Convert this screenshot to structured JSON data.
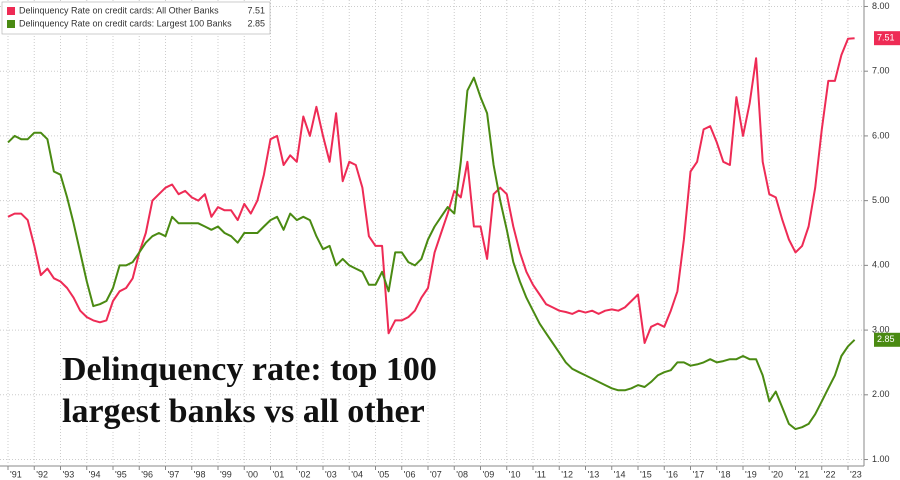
{
  "chart_data": {
    "type": "line",
    "annotation": [
      "Delinquency rate: top 100",
      "largest banks vs all other"
    ],
    "categories": [
      "'91",
      null,
      null,
      null,
      "'92",
      null,
      null,
      null,
      "'93",
      null,
      null,
      null,
      "'94",
      null,
      null,
      null,
      "'95",
      null,
      null,
      null,
      "'96",
      null,
      null,
      null,
      "'97",
      null,
      null,
      null,
      "'98",
      null,
      null,
      null,
      "'99",
      null,
      null,
      null,
      "'00",
      null,
      null,
      null,
      "'01",
      null,
      null,
      null,
      "'02",
      null,
      null,
      null,
      "'03",
      null,
      null,
      null,
      "'04",
      null,
      null,
      null,
      "'05",
      null,
      null,
      null,
      "'06",
      null,
      null,
      null,
      "'07",
      null,
      null,
      null,
      "'08",
      null,
      null,
      null,
      "'09",
      null,
      null,
      null,
      "'10",
      null,
      null,
      null,
      "'11",
      null,
      null,
      null,
      "'12",
      null,
      null,
      null,
      "'13",
      null,
      null,
      null,
      "'14",
      null,
      null,
      null,
      "'15",
      null,
      null,
      null,
      "'16",
      null,
      null,
      null,
      "'17",
      null,
      null,
      null,
      "'18",
      null,
      null,
      null,
      "'19",
      null,
      null,
      null,
      "'20",
      null,
      null,
      null,
      "'21",
      null,
      null,
      null,
      "'22",
      null,
      null,
      null,
      "'23",
      null
    ],
    "series": [
      {
        "name": "Delinquency Rate on credit cards: All Other Banks",
        "color": "#ee2b55",
        "values": [
          4.75,
          4.8,
          4.8,
          4.7,
          4.3,
          3.85,
          3.95,
          3.8,
          3.75,
          3.65,
          3.5,
          3.3,
          3.2,
          3.15,
          3.12,
          3.15,
          3.45,
          3.6,
          3.65,
          3.8,
          4.2,
          4.5,
          5.0,
          5.1,
          5.2,
          5.25,
          5.1,
          5.15,
          5.05,
          5.0,
          5.1,
          4.75,
          4.9,
          4.85,
          4.85,
          4.7,
          4.95,
          4.8,
          5.0,
          5.4,
          5.95,
          6.0,
          5.55,
          5.7,
          5.6,
          6.3,
          6.0,
          6.45,
          6.0,
          5.6,
          6.35,
          5.3,
          5.6,
          5.55,
          5.2,
          4.45,
          4.3,
          4.3,
          2.95,
          3.15,
          3.15,
          3.2,
          3.3,
          3.5,
          3.65,
          4.2,
          4.5,
          4.8,
          5.15,
          5.05,
          5.6,
          4.6,
          4.6,
          4.1,
          5.1,
          5.2,
          5.1,
          4.6,
          4.2,
          3.9,
          3.7,
          3.55,
          3.4,
          3.35,
          3.3,
          3.28,
          3.25,
          3.3,
          3.27,
          3.3,
          3.25,
          3.3,
          3.32,
          3.3,
          3.35,
          3.45,
          3.55,
          2.8,
          3.05,
          3.1,
          3.05,
          3.3,
          3.6,
          4.4,
          5.45,
          5.6,
          6.1,
          6.15,
          5.9,
          5.6,
          5.55,
          6.6,
          6.0,
          6.5,
          7.2,
          5.6,
          5.1,
          5.05,
          4.7,
          4.4,
          4.2,
          4.3,
          4.6,
          5.2,
          6.1,
          6.85,
          6.85,
          7.25,
          7.5,
          7.51
        ]
      },
      {
        "name": "Delinquency Rate on credit cards: Largest 100 Banks",
        "color": "#4a8a12",
        "values": [
          5.9,
          6.0,
          5.95,
          5.95,
          6.05,
          6.05,
          5.95,
          5.45,
          5.4,
          5.05,
          4.65,
          4.2,
          3.75,
          3.37,
          3.4,
          3.45,
          3.65,
          4.0,
          4.0,
          4.05,
          4.2,
          4.35,
          4.45,
          4.5,
          4.45,
          4.75,
          4.65,
          4.65,
          4.65,
          4.65,
          4.6,
          4.55,
          4.6,
          4.5,
          4.45,
          4.35,
          4.5,
          4.5,
          4.5,
          4.6,
          4.7,
          4.75,
          4.55,
          4.8,
          4.7,
          4.75,
          4.7,
          4.45,
          4.25,
          4.3,
          4.0,
          4.1,
          4.0,
          3.95,
          3.9,
          3.7,
          3.7,
          3.9,
          3.6,
          4.2,
          4.2,
          4.05,
          4.0,
          4.1,
          4.4,
          4.6,
          4.75,
          4.9,
          4.8,
          5.6,
          6.7,
          6.9,
          6.6,
          6.35,
          5.55,
          5.0,
          4.55,
          4.05,
          3.75,
          3.5,
          3.3,
          3.1,
          2.95,
          2.8,
          2.65,
          2.5,
          2.4,
          2.35,
          2.3,
          2.25,
          2.2,
          2.15,
          2.1,
          2.07,
          2.07,
          2.1,
          2.15,
          2.12,
          2.2,
          2.3,
          2.35,
          2.38,
          2.5,
          2.5,
          2.45,
          2.47,
          2.5,
          2.55,
          2.5,
          2.52,
          2.55,
          2.55,
          2.6,
          2.55,
          2.55,
          2.3,
          1.9,
          2.05,
          1.8,
          1.55,
          1.47,
          1.5,
          1.55,
          1.7,
          1.9,
          2.1,
          2.3,
          2.6,
          2.75,
          2.85
        ]
      }
    ],
    "ylim": [
      0.9,
      8.1
    ],
    "yticks": [
      {
        "value": 1,
        "label": "1.00"
      },
      {
        "value": 2,
        "label": "2.00"
      },
      {
        "value": 3,
        "label": "3.00"
      },
      {
        "value": 4,
        "label": "4.00"
      },
      {
        "value": 5,
        "label": "5.00"
      },
      {
        "value": 6,
        "label": "6.00"
      },
      {
        "value": 7,
        "label": "7.00"
      },
      {
        "value": 8,
        "label": "8.00"
      }
    ],
    "grid": true,
    "legend": "top-left"
  }
}
